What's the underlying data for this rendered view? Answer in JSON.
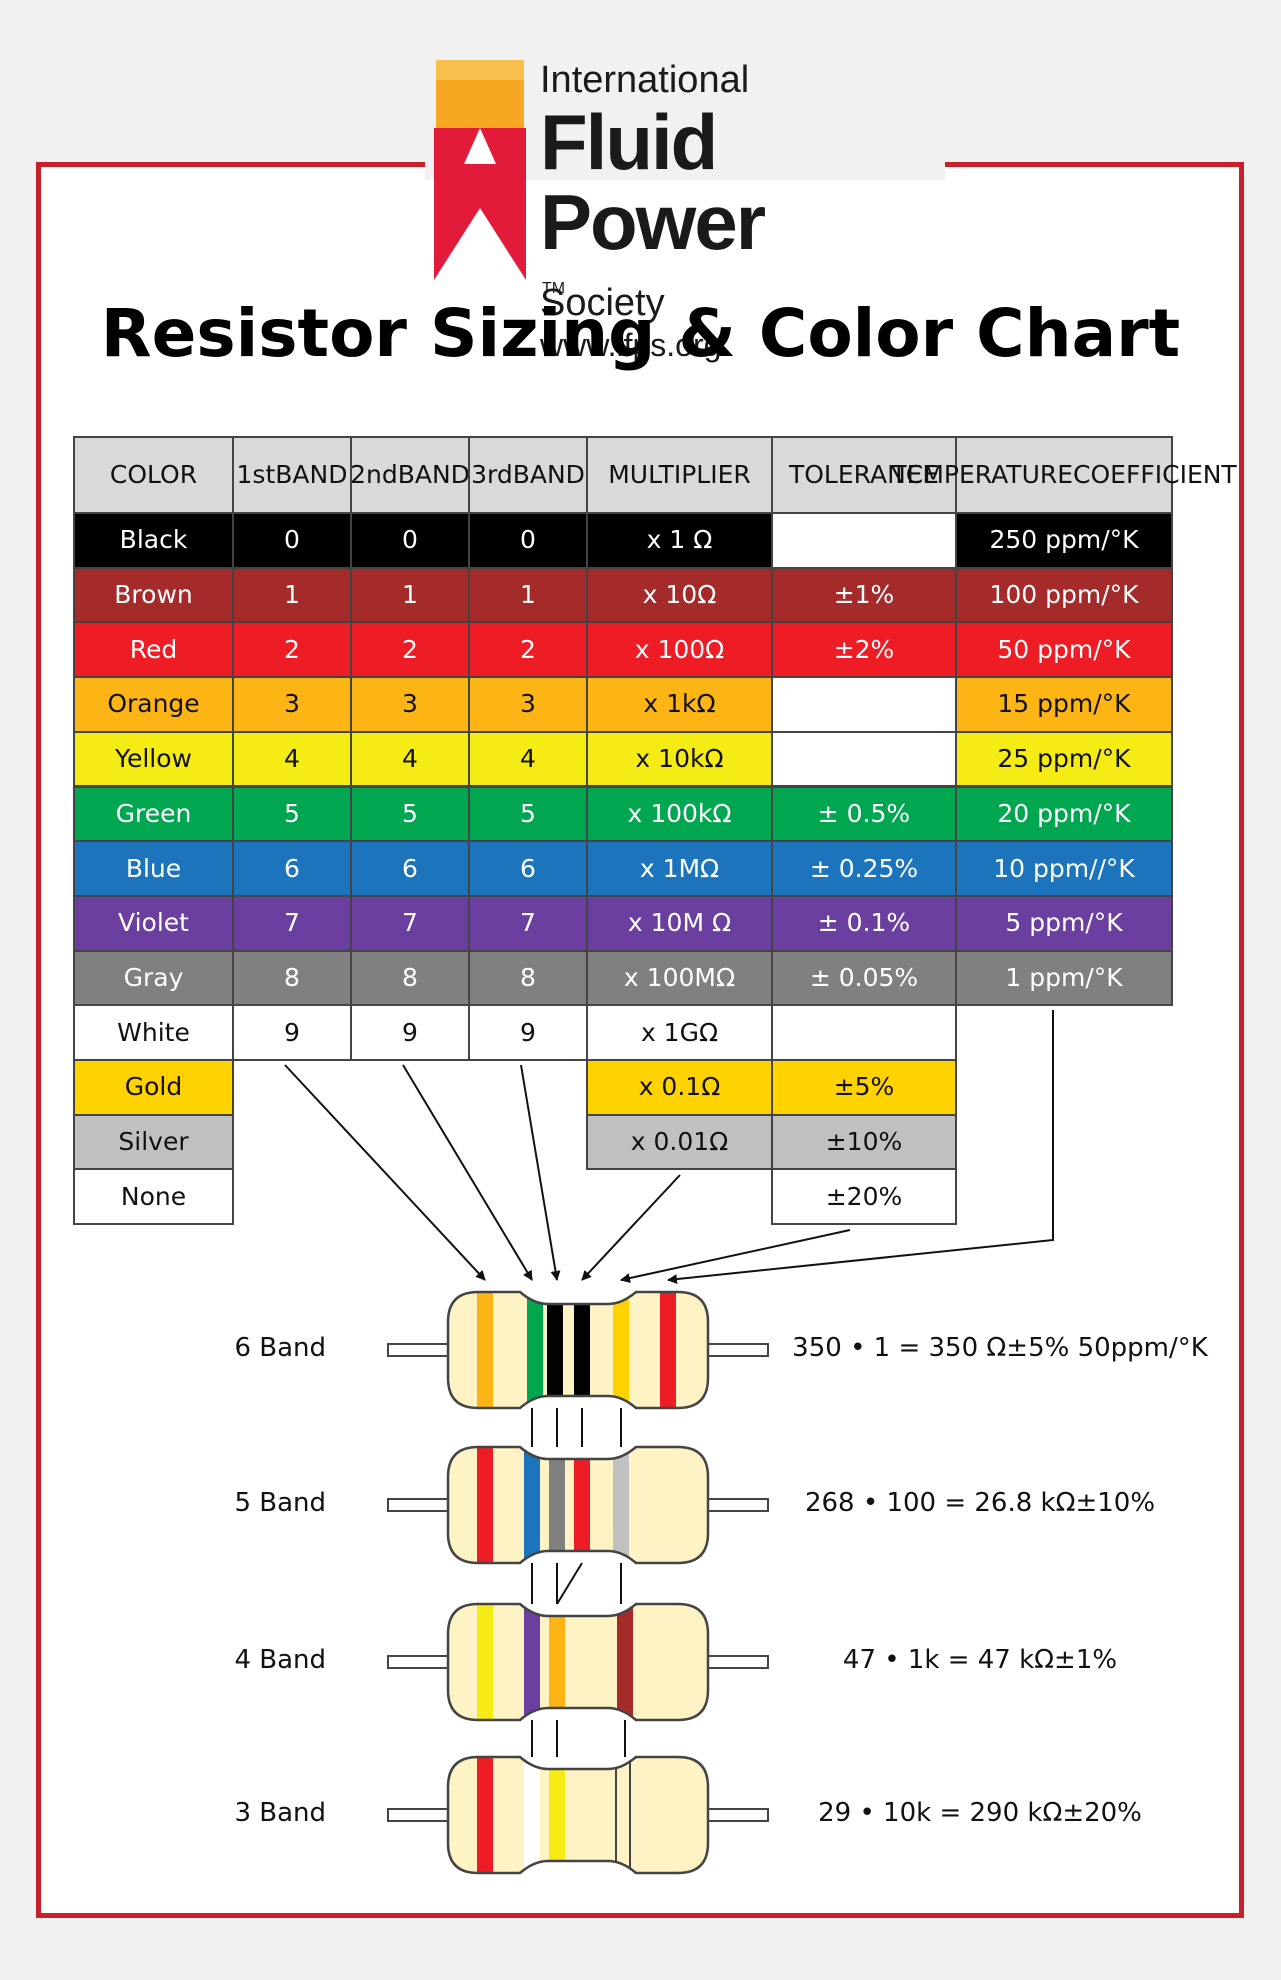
{
  "logo": {
    "line1": "International",
    "line2": "Fluid Power",
    "tm": "TM",
    "line3": "Society",
    "url": "www.ifps.org"
  },
  "title": "Resistor Sizing & Color Chart",
  "table": {
    "headers": {
      "color": "COLOR",
      "band1": [
        "1st",
        "BAND"
      ],
      "band2": [
        "2nd",
        "BAND"
      ],
      "band3": [
        "3rd",
        "BAND"
      ],
      "multiplier": "MULTIPLIER",
      "tolerance": "TOLERANCE",
      "tempco": [
        "TEMPERATURE",
        "COEFFICIENT"
      ]
    },
    "rows": [
      {
        "name": "Black",
        "bg": "#000000",
        "fg": "#ffffff",
        "digit": "0",
        "multiplier": "x 1 Ω",
        "tolerance": "",
        "tempco": "250 ppm/°K"
      },
      {
        "name": "Brown",
        "bg": "#a52a2a",
        "fg": "#ffffff",
        "digit": "1",
        "multiplier": "x 10Ω",
        "tolerance": "±1%",
        "tempco": "100 ppm/°K"
      },
      {
        "name": "Red",
        "bg": "#ee1c25",
        "fg": "#ffffff",
        "digit": "2",
        "multiplier": "x 100Ω",
        "tolerance": "±2%",
        "tempco": "50 ppm/°K"
      },
      {
        "name": "Orange",
        "bg": "#fdb515",
        "fg": "#111111",
        "digit": "3",
        "multiplier": "x 1kΩ",
        "tolerance": "",
        "tempco": "15 ppm/°K"
      },
      {
        "name": "Yellow",
        "bg": "#f6ec15",
        "fg": "#111111",
        "digit": "4",
        "multiplier": "x 10kΩ",
        "tolerance": "",
        "tempco": "25 ppm/°K"
      },
      {
        "name": "Green",
        "bg": "#00a650",
        "fg": "#ffffff",
        "digit": "5",
        "multiplier": "x 100kΩ",
        "tolerance": "± 0.5%",
        "tempco": "20 ppm/°K"
      },
      {
        "name": "Blue",
        "bg": "#1c75bc",
        "fg": "#ffffff",
        "digit": "6",
        "multiplier": "x 1MΩ",
        "tolerance": "± 0.25%",
        "tempco": "10 ppm//°K"
      },
      {
        "name": "Violet",
        "bg": "#6b3fa0",
        "fg": "#ffffff",
        "digit": "7",
        "multiplier": "x 10M Ω",
        "tolerance": "± 0.1%",
        "tempco": "5 ppm/°K"
      },
      {
        "name": "Gray",
        "bg": "#808080",
        "fg": "#ffffff",
        "digit": "8",
        "multiplier": "x 100MΩ",
        "tolerance": "± 0.05%",
        "tempco": "1 ppm/°K"
      },
      {
        "name": "White",
        "bg": "#ffffff",
        "fg": "#111111",
        "digit": "9",
        "multiplier": "x 1GΩ",
        "tolerance": ""
      },
      {
        "name": "Gold",
        "bg": "#ffd200",
        "fg": "#111111",
        "multiplier": "x 0.1Ω",
        "tolerance": "±5%"
      },
      {
        "name": "Silver",
        "bg": "#c0c0c0",
        "fg": "#111111",
        "multiplier": "x 0.01Ω",
        "tolerance": "±10%"
      },
      {
        "name": "None",
        "bg": "#ffffff",
        "fg": "#111111",
        "tolerance": "±20%"
      }
    ]
  },
  "resistors": [
    {
      "label": "6 Band",
      "formula": "350 • 1 = 350 Ω±5% 50ppm/°K",
      "bands": [
        "#fdb515",
        "#00a650",
        "#000000",
        "#000000",
        "#ffd200",
        "#ee1c25"
      ]
    },
    {
      "label": "5 Band",
      "formula": "268 • 100 = 26.8 kΩ±10%",
      "bands": [
        "#ee1c25",
        "#1c75bc",
        "#808080",
        "#ee1c25",
        "#c0c0c0"
      ]
    },
    {
      "label": "4 Band",
      "formula": "47 • 1k = 47 kΩ±1%",
      "bands": [
        "#f6ec15",
        "#6b3fa0",
        "#fdb515",
        "#a52a2a"
      ]
    },
    {
      "label": "3 Band",
      "formula": "29 • 10k = 290 kΩ±20%",
      "bands": [
        "#ee1c25",
        "#ffffff",
        "#f6ec15"
      ]
    }
  ]
}
